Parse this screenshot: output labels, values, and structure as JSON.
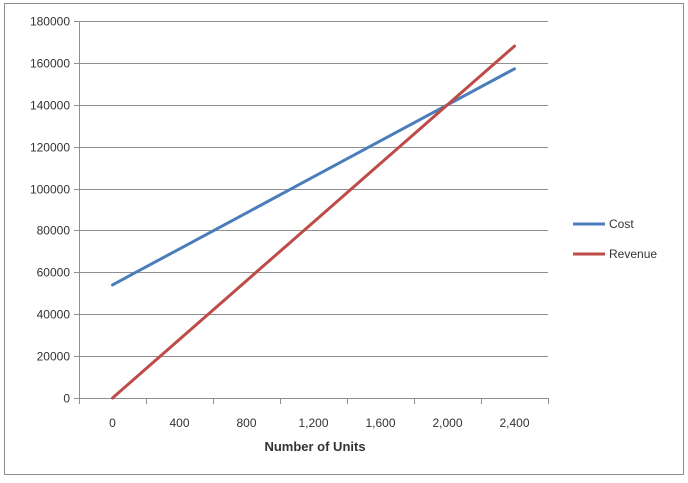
{
  "chart_data": {
    "type": "line",
    "title": "",
    "xlabel": "Number of Units",
    "ylabel": "",
    "x": [
      0,
      400,
      800,
      1200,
      1600,
      2000,
      2400
    ],
    "x_tick_labels": [
      "0",
      "400",
      "800",
      "1,200",
      "1,600",
      "2,000",
      "2,400"
    ],
    "y_tick_labels": [
      "0",
      "20000",
      "40000",
      "60000",
      "80000",
      "100000",
      "120000",
      "140000",
      "160000",
      "180000"
    ],
    "xlim": [
      -200,
      2600
    ],
    "ylim": [
      0,
      180000
    ],
    "grid": "horizontal",
    "legend_position": "right",
    "series": [
      {
        "name": "Cost",
        "color": "#4a7ebb",
        "values": [
          54000,
          71200,
          88400,
          105600,
          122800,
          140000,
          157200
        ]
      },
      {
        "name": "Revenue",
        "color": "#be4b48",
        "values": [
          0,
          28000,
          56000,
          84000,
          112000,
          140000,
          168000
        ]
      }
    ]
  }
}
